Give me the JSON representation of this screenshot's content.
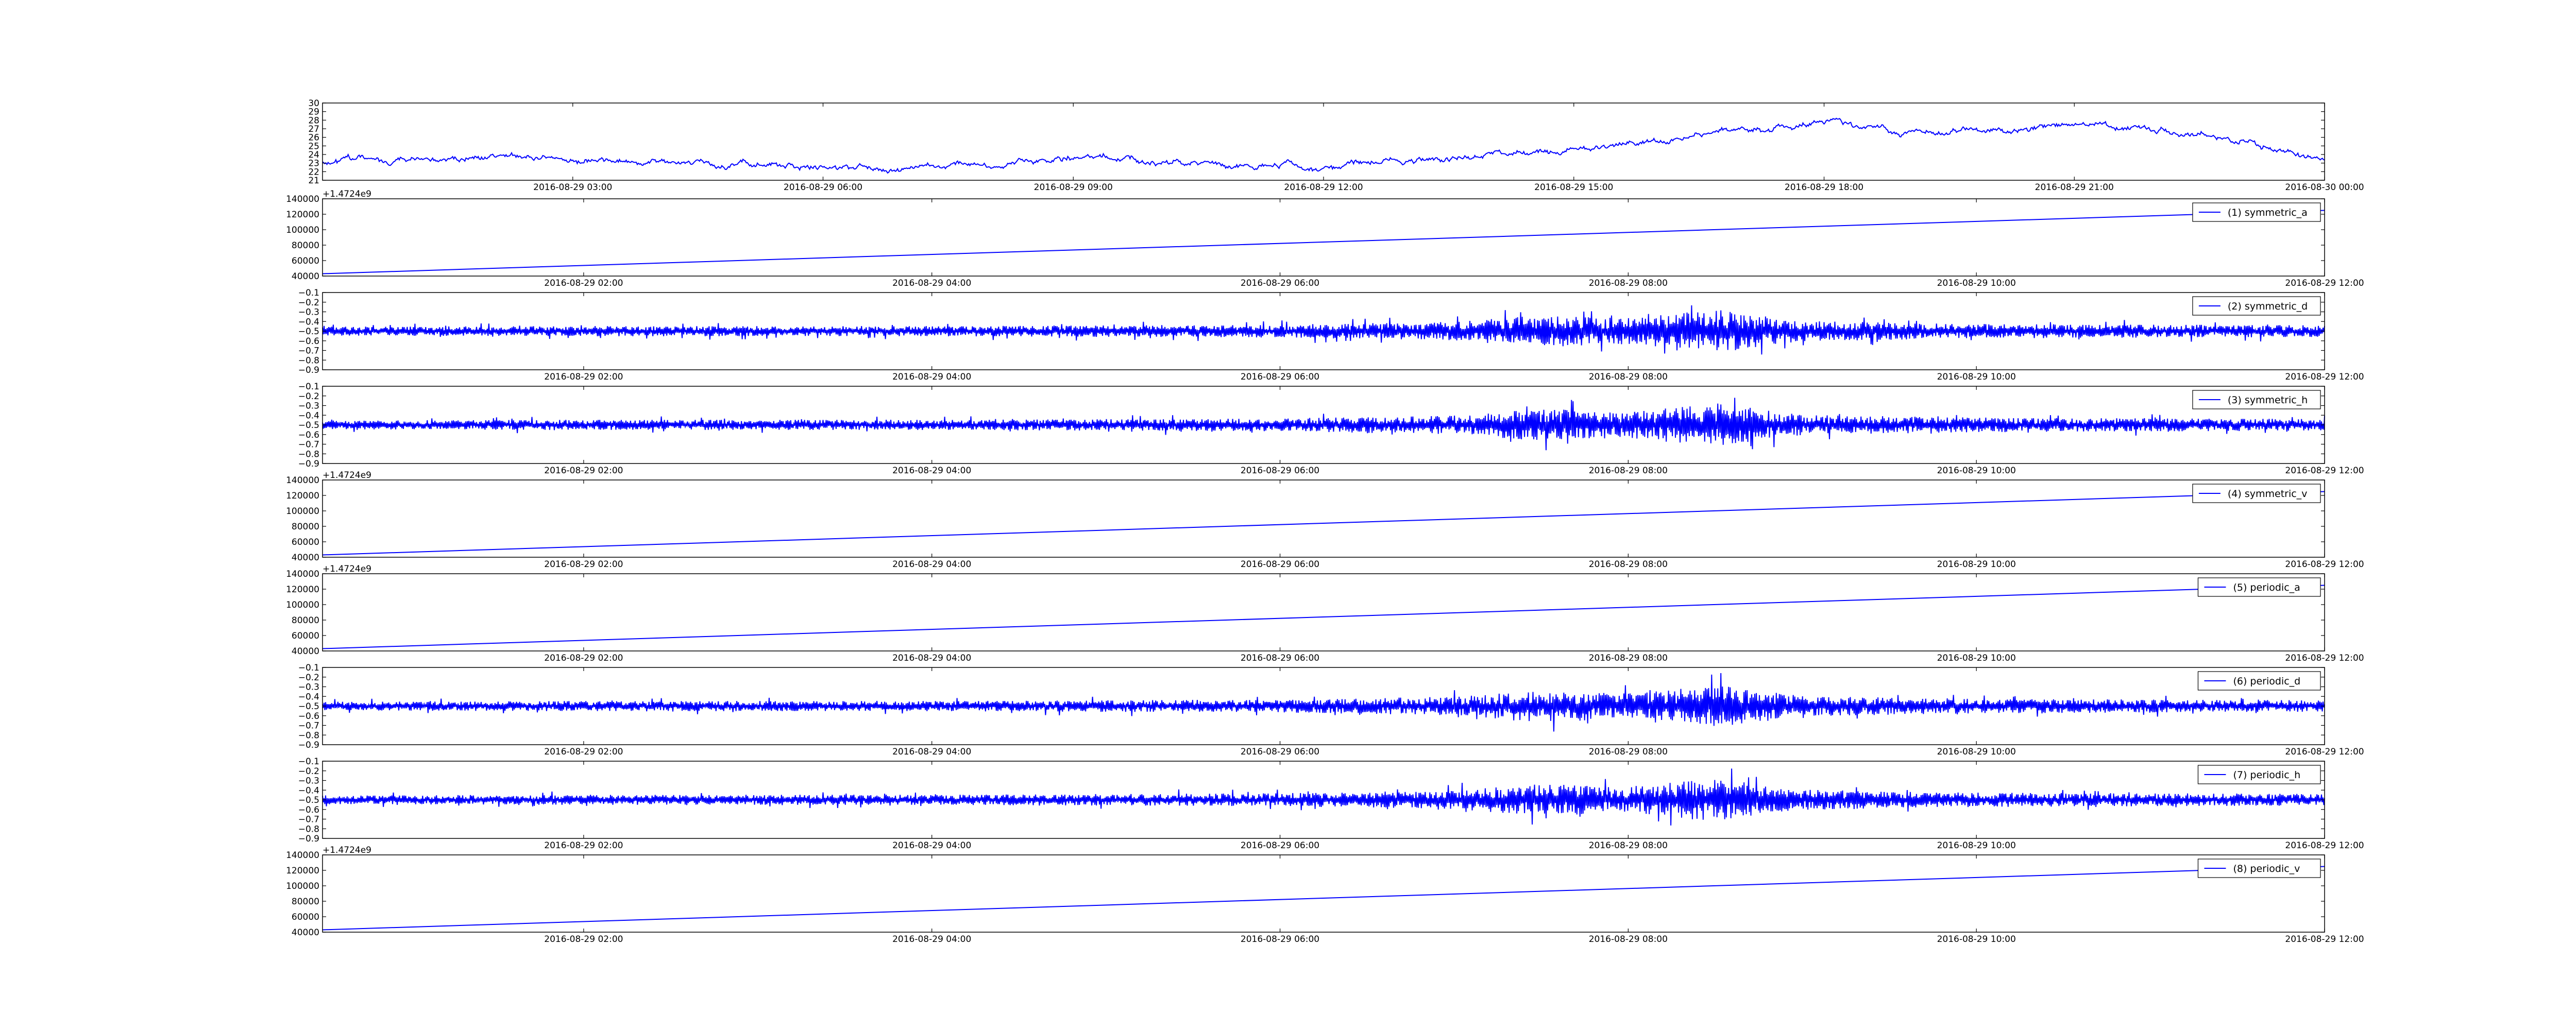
{
  "figure": {
    "background": "#ffffff",
    "line_color": "#0000ff",
    "axes_color": "#000000"
  },
  "chart_data": [
    {
      "type": "line",
      "title": "",
      "xlabel": "",
      "ylabel": "",
      "legend": "",
      "offset_label": "",
      "x_tick_labels": [
        "2016-08-29 03:00",
        "2016-08-29 06:00",
        "2016-08-29 09:00",
        "2016-08-29 12:00",
        "2016-08-29 15:00",
        "2016-08-29 18:00",
        "2016-08-29 21:00",
        "2016-08-30 00:00"
      ],
      "x_range": [
        "2016-08-29 00:00",
        "2016-08-30 00:00"
      ],
      "y_tick_labels": [
        "21",
        "22",
        "23",
        "24",
        "25",
        "26",
        "27",
        "28",
        "29",
        "30"
      ],
      "ylim": [
        21,
        30
      ],
      "grid": false,
      "series": [
        {
          "shape": "noisy",
          "x": [
            "2016-08-29 00:00",
            "2016-08-29 01:00",
            "2016-08-29 02:00",
            "2016-08-29 03:00",
            "2016-08-29 04:00",
            "2016-08-29 05:00",
            "2016-08-29 06:00",
            "2016-08-29 07:00",
            "2016-08-29 08:00",
            "2016-08-29 09:00",
            "2016-08-29 10:00",
            "2016-08-29 11:00",
            "2016-08-29 12:00",
            "2016-08-29 13:00",
            "2016-08-29 14:00",
            "2016-08-29 15:00",
            "2016-08-29 16:00",
            "2016-08-29 17:00",
            "2016-08-29 18:00",
            "2016-08-29 19:00",
            "2016-08-29 20:00",
            "2016-08-29 21:00",
            "2016-08-29 22:00",
            "2016-08-29 23:00",
            "2016-08-30 00:00"
          ],
          "values": [
            23.2,
            23.4,
            23.7,
            23.4,
            23.1,
            22.8,
            22.5,
            22.3,
            22.9,
            23.5,
            23.1,
            22.6,
            22.7,
            23.2,
            23.9,
            24.5,
            25.6,
            27.0,
            27.9,
            26.4,
            27.0,
            27.4,
            26.9,
            25.5,
            23.5
          ]
        }
      ]
    },
    {
      "type": "line",
      "legend": "(1) symmetric_a",
      "offset_label": "+1.4724e9",
      "x_tick_labels": [
        "2016-08-29 02:00",
        "2016-08-29 04:00",
        "2016-08-29 06:00",
        "2016-08-29 08:00",
        "2016-08-29 10:00",
        "2016-08-29 12:00"
      ],
      "x_range": [
        "2016-08-29 00:30",
        "2016-08-29 12:00"
      ],
      "y_tick_labels": [
        "40000",
        "60000",
        "80000",
        "100000",
        "120000",
        "140000"
      ],
      "ylim": [
        40000,
        140000
      ],
      "grid": false,
      "series": [
        {
          "name": "(1) symmetric_a",
          "shape": "linear",
          "x": [
            "2016-08-29 00:30",
            "2016-08-29 12:00"
          ],
          "values": [
            43000,
            125000
          ]
        }
      ]
    },
    {
      "type": "line",
      "legend": "(2) symmetric_d",
      "offset_label": "",
      "x_tick_labels": [
        "2016-08-29 02:00",
        "2016-08-29 04:00",
        "2016-08-29 06:00",
        "2016-08-29 08:00",
        "2016-08-29 10:00",
        "2016-08-29 12:00"
      ],
      "x_range": [
        "2016-08-29 00:30",
        "2016-08-29 12:00"
      ],
      "y_tick_labels": [
        "−0.9",
        "−0.8",
        "−0.7",
        "−0.6",
        "−0.5",
        "−0.4",
        "−0.3",
        "−0.2",
        "−0.1"
      ],
      "ylim": [
        -0.9,
        -0.1
      ],
      "grid": false,
      "series": [
        {
          "name": "(2) symmetric_d",
          "shape": "oscillating",
          "center": -0.5,
          "x": [
            "2016-08-29 00:30",
            "2016-08-29 02:00",
            "2016-08-29 04:00",
            "2016-08-29 06:00",
            "2016-08-29 07:00",
            "2016-08-29 07:30",
            "2016-08-29 08:00",
            "2016-08-29 08:30",
            "2016-08-29 09:00",
            "2016-08-29 10:00",
            "2016-08-29 12:00"
          ],
          "amplitude": [
            0.06,
            0.07,
            0.07,
            0.09,
            0.13,
            0.22,
            0.18,
            0.3,
            0.14,
            0.1,
            0.08
          ]
        }
      ]
    },
    {
      "type": "line",
      "legend": "(3) symmetric_h",
      "offset_label": "",
      "x_tick_labels": [
        "2016-08-29 02:00",
        "2016-08-29 04:00",
        "2016-08-29 06:00",
        "2016-08-29 08:00",
        "2016-08-29 10:00",
        "2016-08-29 12:00"
      ],
      "x_range": [
        "2016-08-29 00:30",
        "2016-08-29 12:00"
      ],
      "y_tick_labels": [
        "−0.9",
        "−0.8",
        "−0.7",
        "−0.6",
        "−0.5",
        "−0.4",
        "−0.3",
        "−0.2",
        "−0.1"
      ],
      "ylim": [
        -0.9,
        -0.1
      ],
      "grid": false,
      "series": [
        {
          "name": "(3) symmetric_h",
          "shape": "oscillating",
          "center": -0.5,
          "x": [
            "2016-08-29 00:30",
            "2016-08-29 02:00",
            "2016-08-29 04:00",
            "2016-08-29 06:00",
            "2016-08-29 07:00",
            "2016-08-29 07:30",
            "2016-08-29 08:00",
            "2016-08-29 08:30",
            "2016-08-29 09:00",
            "2016-08-29 10:00",
            "2016-08-29 12:00"
          ],
          "amplitude": [
            0.06,
            0.07,
            0.07,
            0.09,
            0.13,
            0.22,
            0.18,
            0.3,
            0.14,
            0.1,
            0.08
          ]
        }
      ]
    },
    {
      "type": "line",
      "legend": "(4) symmetric_v",
      "offset_label": "+1.4724e9",
      "x_tick_labels": [
        "2016-08-29 02:00",
        "2016-08-29 04:00",
        "2016-08-29 06:00",
        "2016-08-29 08:00",
        "2016-08-29 10:00",
        "2016-08-29 12:00"
      ],
      "x_range": [
        "2016-08-29 00:30",
        "2016-08-29 12:00"
      ],
      "y_tick_labels": [
        "40000",
        "60000",
        "80000",
        "100000",
        "120000",
        "140000"
      ],
      "ylim": [
        40000,
        140000
      ],
      "grid": false,
      "series": [
        {
          "name": "(4) symmetric_v",
          "shape": "linear",
          "x": [
            "2016-08-29 00:30",
            "2016-08-29 12:00"
          ],
          "values": [
            43000,
            125000
          ]
        }
      ]
    },
    {
      "type": "line",
      "legend": "(5) periodic_a",
      "offset_label": "+1.4724e9",
      "x_tick_labels": [
        "2016-08-29 02:00",
        "2016-08-29 04:00",
        "2016-08-29 06:00",
        "2016-08-29 08:00",
        "2016-08-29 10:00",
        "2016-08-29 12:00"
      ],
      "x_range": [
        "2016-08-29 00:30",
        "2016-08-29 12:00"
      ],
      "y_tick_labels": [
        "40000",
        "60000",
        "80000",
        "100000",
        "120000",
        "140000"
      ],
      "ylim": [
        40000,
        140000
      ],
      "grid": false,
      "series": [
        {
          "name": "(5) periodic_a",
          "shape": "linear",
          "x": [
            "2016-08-29 00:30",
            "2016-08-29 12:00"
          ],
          "values": [
            43000,
            125000
          ]
        }
      ]
    },
    {
      "type": "line",
      "legend": "(6) periodic_d",
      "offset_label": "",
      "x_tick_labels": [
        "2016-08-29 02:00",
        "2016-08-29 04:00",
        "2016-08-29 06:00",
        "2016-08-29 08:00",
        "2016-08-29 10:00",
        "2016-08-29 12:00"
      ],
      "x_range": [
        "2016-08-29 00:30",
        "2016-08-29 12:00"
      ],
      "y_tick_labels": [
        "−0.9",
        "−0.8",
        "−0.7",
        "−0.6",
        "−0.5",
        "−0.4",
        "−0.3",
        "−0.2",
        "−0.1"
      ],
      "ylim": [
        -0.9,
        -0.1
      ],
      "grid": false,
      "series": [
        {
          "name": "(6) periodic_d",
          "shape": "oscillating",
          "center": -0.5,
          "x": [
            "2016-08-29 00:30",
            "2016-08-29 02:00",
            "2016-08-29 04:00",
            "2016-08-29 06:00",
            "2016-08-29 07:00",
            "2016-08-29 07:30",
            "2016-08-29 08:00",
            "2016-08-29 08:30",
            "2016-08-29 09:00",
            "2016-08-29 10:00",
            "2016-08-29 12:00"
          ],
          "amplitude": [
            0.06,
            0.07,
            0.07,
            0.09,
            0.13,
            0.22,
            0.18,
            0.3,
            0.14,
            0.1,
            0.08
          ]
        }
      ]
    },
    {
      "type": "line",
      "legend": "(7) periodic_h",
      "offset_label": "",
      "x_tick_labels": [
        "2016-08-29 02:00",
        "2016-08-29 04:00",
        "2016-08-29 06:00",
        "2016-08-29 08:00",
        "2016-08-29 10:00",
        "2016-08-29 12:00"
      ],
      "x_range": [
        "2016-08-29 00:30",
        "2016-08-29 12:00"
      ],
      "y_tick_labels": [
        "−0.9",
        "−0.8",
        "−0.7",
        "−0.6",
        "−0.5",
        "−0.4",
        "−0.3",
        "−0.2",
        "−0.1"
      ],
      "ylim": [
        -0.9,
        -0.1
      ],
      "grid": false,
      "series": [
        {
          "name": "(7) periodic_h",
          "shape": "oscillating",
          "center": -0.5,
          "x": [
            "2016-08-29 00:30",
            "2016-08-29 02:00",
            "2016-08-29 04:00",
            "2016-08-29 06:00",
            "2016-08-29 07:00",
            "2016-08-29 07:30",
            "2016-08-29 08:00",
            "2016-08-29 08:30",
            "2016-08-29 09:00",
            "2016-08-29 10:00",
            "2016-08-29 12:00"
          ],
          "amplitude": [
            0.06,
            0.07,
            0.07,
            0.09,
            0.13,
            0.22,
            0.18,
            0.3,
            0.14,
            0.1,
            0.08
          ]
        }
      ]
    },
    {
      "type": "line",
      "legend": "(8) periodic_v",
      "offset_label": "+1.4724e9",
      "x_tick_labels": [
        "2016-08-29 02:00",
        "2016-08-29 04:00",
        "2016-08-29 06:00",
        "2016-08-29 08:00",
        "2016-08-29 10:00",
        "2016-08-29 12:00"
      ],
      "x_range": [
        "2016-08-29 00:30",
        "2016-08-29 12:00"
      ],
      "y_tick_labels": [
        "40000",
        "60000",
        "80000",
        "100000",
        "120000",
        "140000"
      ],
      "ylim": [
        40000,
        140000
      ],
      "grid": false,
      "series": [
        {
          "name": "(8) periodic_v",
          "shape": "linear",
          "x": [
            "2016-08-29 00:30",
            "2016-08-29 12:00"
          ],
          "values": [
            43000,
            125000
          ]
        }
      ]
    }
  ]
}
